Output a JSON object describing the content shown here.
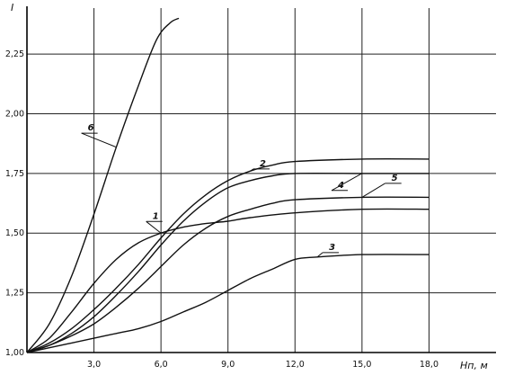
{
  "chart_data": {
    "type": "line",
    "title": "",
    "ylabel": "I",
    "xlabel": "Hп, м",
    "xlim": [
      0,
      21
    ],
    "ylim": [
      1.0,
      2.45
    ],
    "x_ticks": [
      {
        "value": 3,
        "label": "3,0"
      },
      {
        "value": 6,
        "label": "6,0"
      },
      {
        "value": 9,
        "label": "9,0"
      },
      {
        "value": 12,
        "label": "12,0"
      },
      {
        "value": 15,
        "label": "15,0"
      },
      {
        "value": 18,
        "label": "18,0"
      }
    ],
    "y_ticks": [
      {
        "value": 1.0,
        "label": "1,00"
      },
      {
        "value": 1.25,
        "label": "1,25"
      },
      {
        "value": 1.5,
        "label": "1,50"
      },
      {
        "value": 1.75,
        "label": "1,75"
      },
      {
        "value": 2.0,
        "label": "2,00"
      },
      {
        "value": 2.25,
        "label": "2,25"
      }
    ],
    "grid": true,
    "series": [
      {
        "name": "1",
        "label_at": [
          5.5,
          1.56
        ],
        "points": [
          [
            0,
            1.0
          ],
          [
            1,
            1.06
          ],
          [
            2,
            1.17
          ],
          [
            3,
            1.29
          ],
          [
            4,
            1.39
          ],
          [
            5,
            1.46
          ],
          [
            6,
            1.5
          ],
          [
            7,
            1.525
          ],
          [
            8,
            1.54
          ],
          [
            9,
            1.55
          ],
          [
            10,
            1.565
          ],
          [
            12,
            1.585
          ],
          [
            15,
            1.6
          ],
          [
            18,
            1.6
          ]
        ]
      },
      {
        "name": "2",
        "label_at": [
          10.3,
          1.78
        ],
        "points": [
          [
            0,
            1.0
          ],
          [
            1,
            1.04
          ],
          [
            2,
            1.1
          ],
          [
            3,
            1.18
          ],
          [
            4,
            1.27
          ],
          [
            5,
            1.37
          ],
          [
            6,
            1.48
          ],
          [
            7,
            1.58
          ],
          [
            8,
            1.66
          ],
          [
            9,
            1.72
          ],
          [
            10,
            1.76
          ],
          [
            11,
            1.785
          ],
          [
            12,
            1.8
          ],
          [
            15,
            1.81
          ],
          [
            18,
            1.81
          ]
        ]
      },
      {
        "name": "3",
        "label_at": [
          13.4,
          1.43
        ],
        "points": [
          [
            0,
            1.0
          ],
          [
            1,
            1.02
          ],
          [
            2,
            1.04
          ],
          [
            3,
            1.06
          ],
          [
            4,
            1.08
          ],
          [
            5,
            1.1
          ],
          [
            6,
            1.13
          ],
          [
            7,
            1.17
          ],
          [
            8,
            1.21
          ],
          [
            9,
            1.26
          ],
          [
            10,
            1.31
          ],
          [
            11,
            1.35
          ],
          [
            12,
            1.39
          ],
          [
            13,
            1.4
          ],
          [
            15,
            1.41
          ],
          [
            18,
            1.41
          ]
        ]
      },
      {
        "name": "4",
        "label_at": [
          13.8,
          1.69
        ],
        "points": [
          [
            0,
            1.0
          ],
          [
            1,
            1.03
          ],
          [
            2,
            1.08
          ],
          [
            3,
            1.15
          ],
          [
            4,
            1.24
          ],
          [
            5,
            1.34
          ],
          [
            6,
            1.45
          ],
          [
            7,
            1.55
          ],
          [
            8,
            1.63
          ],
          [
            9,
            1.69
          ],
          [
            10,
            1.72
          ],
          [
            11,
            1.74
          ],
          [
            12,
            1.75
          ],
          [
            15,
            1.75
          ],
          [
            18,
            1.75
          ]
        ]
      },
      {
        "name": "5",
        "label_at": [
          16.2,
          1.72
        ],
        "points": [
          [
            0,
            1.0
          ],
          [
            1,
            1.03
          ],
          [
            2,
            1.07
          ],
          [
            3,
            1.12
          ],
          [
            4,
            1.19
          ],
          [
            5,
            1.27
          ],
          [
            6,
            1.36
          ],
          [
            7,
            1.45
          ],
          [
            8,
            1.52
          ],
          [
            9,
            1.57
          ],
          [
            10,
            1.6
          ],
          [
            11,
            1.625
          ],
          [
            12,
            1.64
          ],
          [
            15,
            1.65
          ],
          [
            18,
            1.65
          ]
        ]
      },
      {
        "name": "6",
        "label_at": [
          2.6,
          1.93
        ],
        "points": [
          [
            0,
            1.0
          ],
          [
            1,
            1.12
          ],
          [
            2,
            1.32
          ],
          [
            3,
            1.58
          ],
          [
            4,
            1.86
          ],
          [
            5,
            2.12
          ],
          [
            5.8,
            2.31
          ],
          [
            6.4,
            2.38
          ],
          [
            6.8,
            2.4
          ]
        ]
      }
    ]
  }
}
